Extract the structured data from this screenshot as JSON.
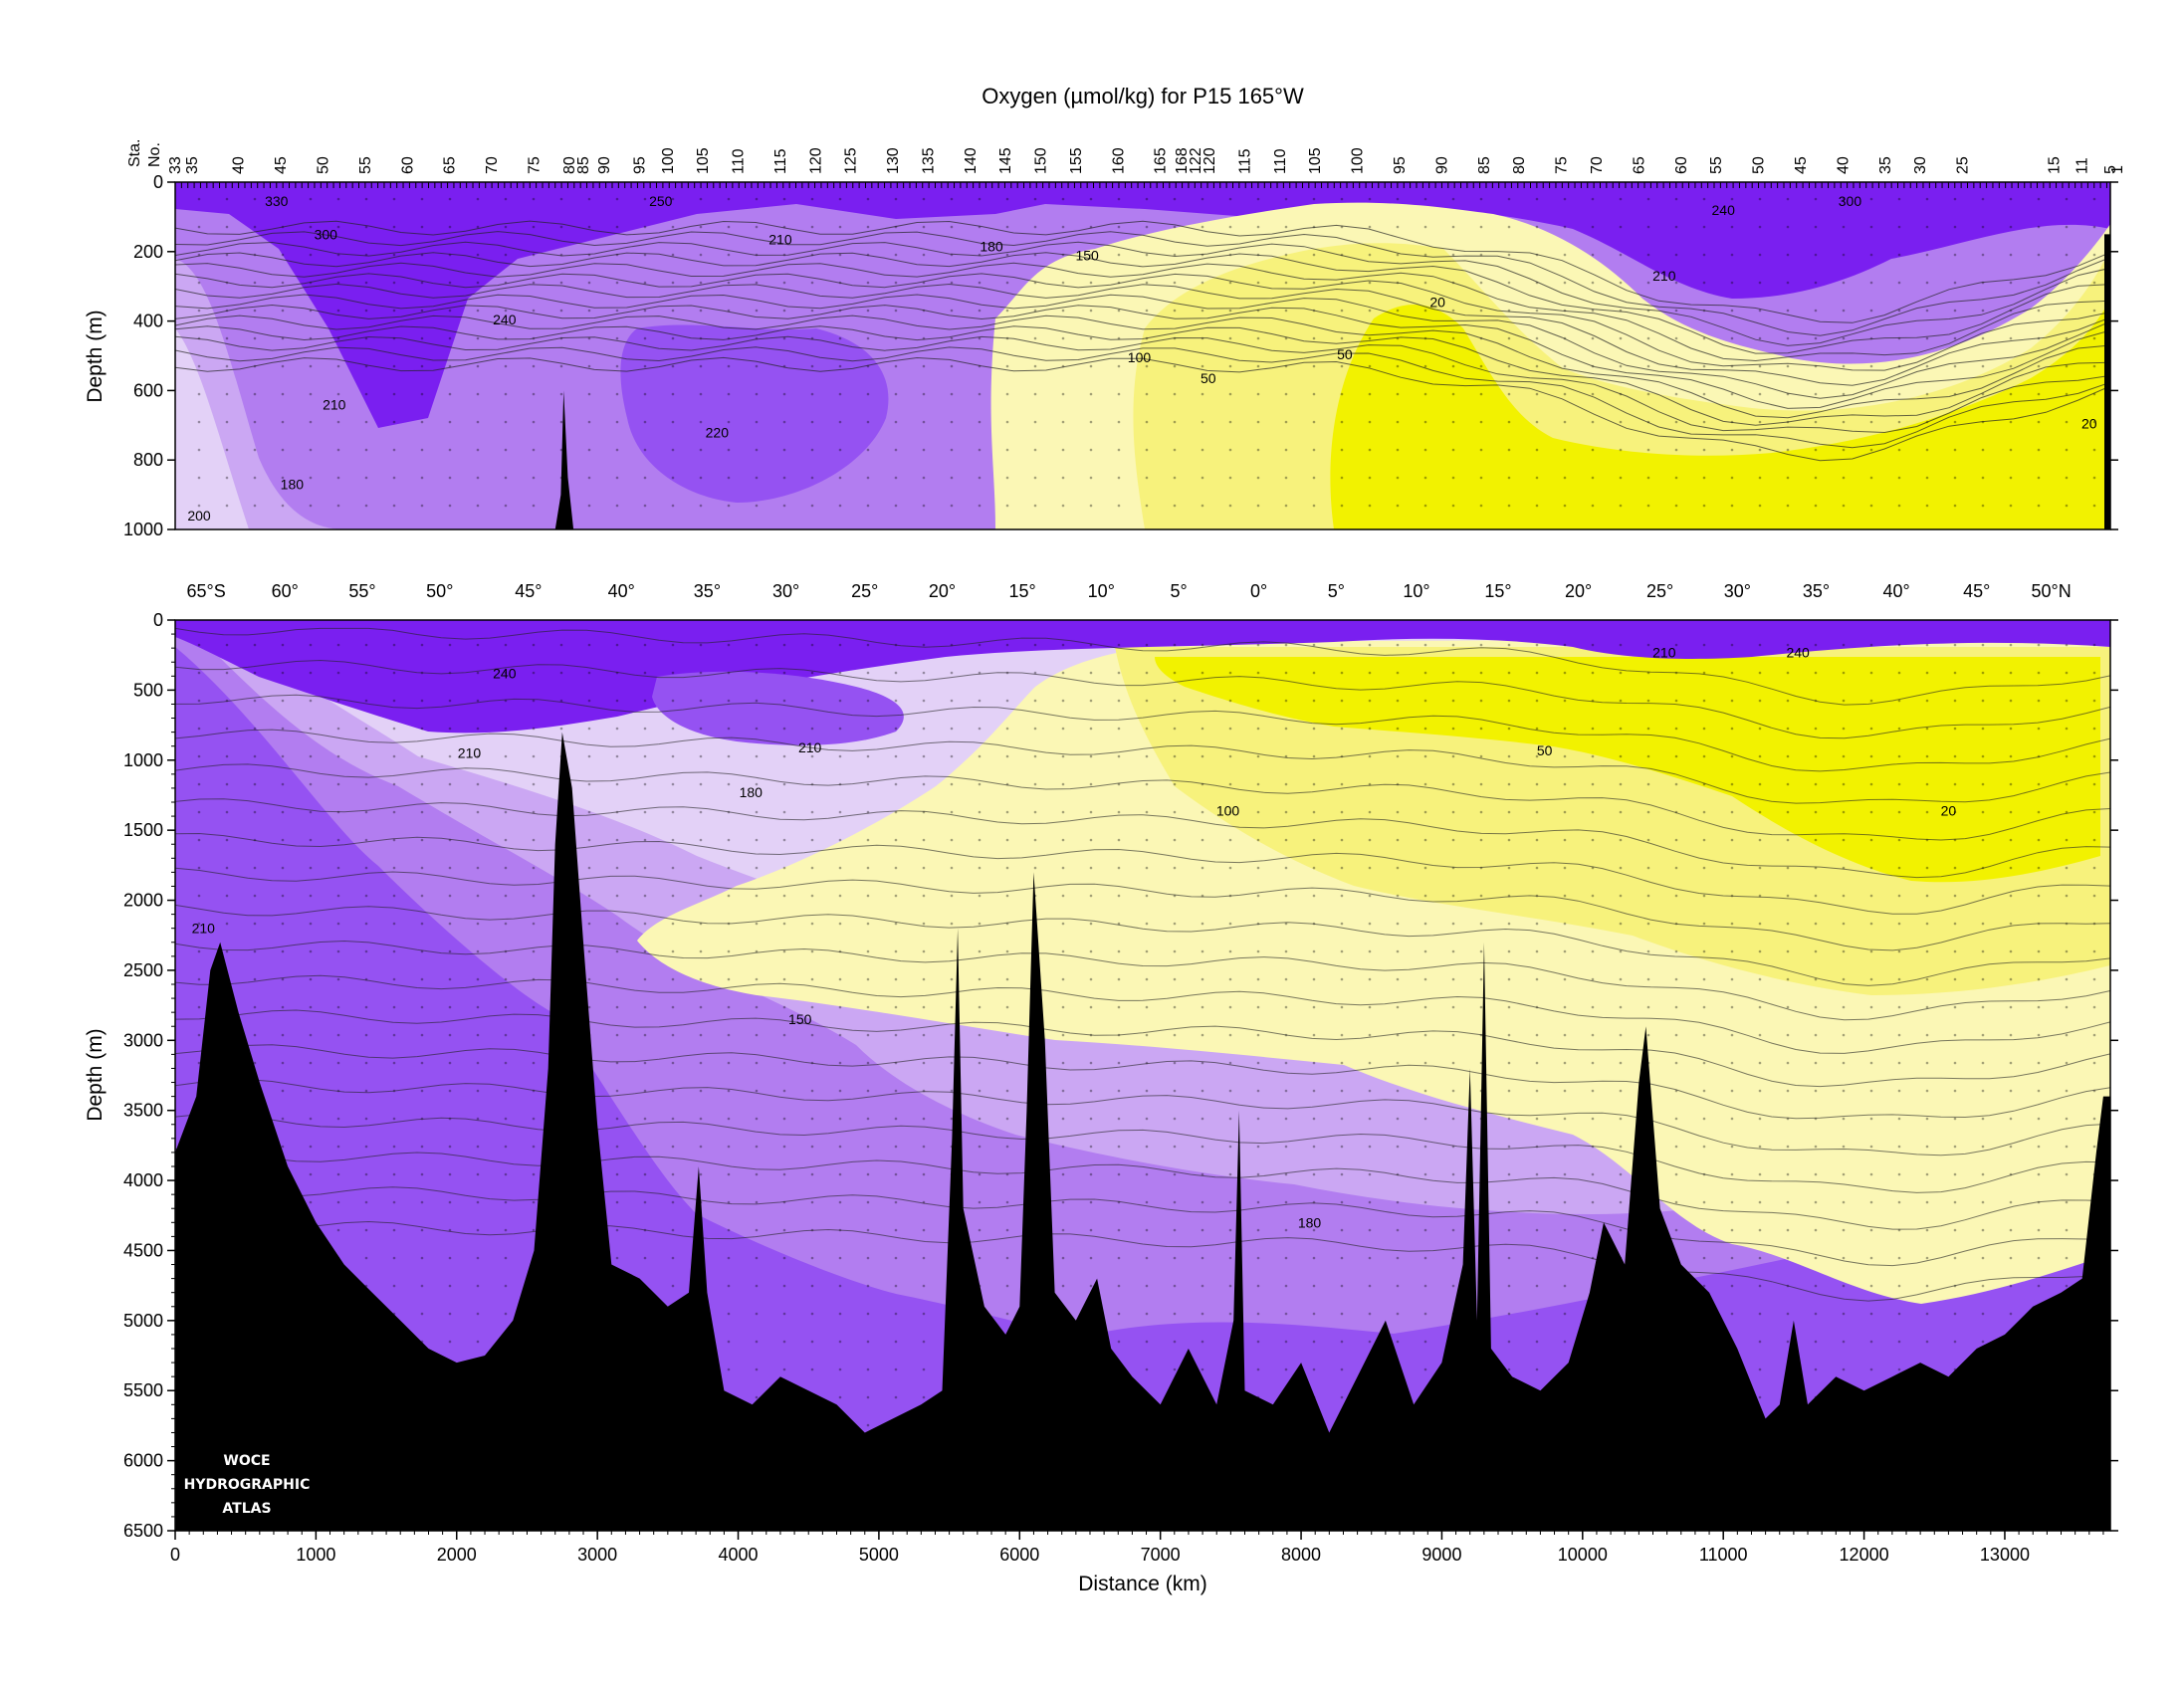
{
  "figure": {
    "title": "Oxygen (µmol/kg) for P15 165°W",
    "logo_lines": [
      "WOCE",
      "HYDROGRAPHIC",
      "ATLAS"
    ],
    "station_axis_label_lines": [
      "Sta.",
      "No."
    ],
    "colors": {
      "very_high": "#7a1ff0",
      "high": "#9552f2",
      "mid_high": "#b27df0",
      "mid": "#cba7f3",
      "mid_low": "#e3d1f7",
      "low_pale": "#fbf7b5",
      "low": "#f7f27c",
      "very_low": "#f2f200",
      "bathymetry": "#000000",
      "contour": "#222222"
    }
  },
  "chart_data": [
    {
      "type": "heatmap",
      "panel": "upper",
      "title": "Oxygen (µmol/kg) for P15 165°W",
      "xlabel": "",
      "ylabel": "Depth (m)",
      "xlim": [
        0,
        13750
      ],
      "ylim": [
        1000,
        0
      ],
      "y_ticks": [
        0,
        200,
        400,
        600,
        800,
        1000
      ],
      "top_axis": "station numbers",
      "station_labels": [
        "33",
        "35",
        "40",
        "45",
        "50",
        "55",
        "60",
        "65",
        "70",
        "75",
        "80",
        "85",
        "90",
        "95",
        "100",
        "105",
        "110",
        "115",
        "120",
        "125",
        "130",
        "135",
        "140",
        "145",
        "150",
        "155",
        "160",
        "165",
        "168",
        "122",
        "120",
        "115",
        "110",
        "105",
        "100",
        "95",
        "90",
        "85",
        "80",
        "75",
        "70",
        "65",
        "60",
        "55",
        "50",
        "45",
        "40",
        "35",
        "30",
        "25",
        "15",
        "11",
        "5",
        "1"
      ],
      "station_distances_km": [
        0,
        120,
        450,
        750,
        1050,
        1350,
        1650,
        1950,
        2250,
        2550,
        2800,
        2900,
        3050,
        3300,
        3500,
        3750,
        4000,
        4300,
        4550,
        4800,
        5100,
        5350,
        5650,
        5900,
        6150,
        6400,
        6700,
        7000,
        7150,
        7250,
        7350,
        7600,
        7850,
        8100,
        8400,
        8700,
        9000,
        9300,
        9550,
        9850,
        10100,
        10400,
        10700,
        10950,
        11250,
        11550,
        11850,
        12150,
        12400,
        12700,
        13350,
        13550,
        13750,
        13800
      ],
      "contour_labels": [
        {
          "value": "330",
          "x_km": 720,
          "depth_m": 55
        },
        {
          "value": "300",
          "x_km": 1070,
          "depth_m": 150
        },
        {
          "value": "250",
          "x_km": 3450,
          "depth_m": 55
        },
        {
          "value": "210",
          "x_km": 4300,
          "depth_m": 165
        },
        {
          "value": "180",
          "x_km": 5800,
          "depth_m": 185
        },
        {
          "value": "150",
          "x_km": 6480,
          "depth_m": 210
        },
        {
          "value": "240",
          "x_km": 2340,
          "depth_m": 395
        },
        {
          "value": "210",
          "x_km": 1130,
          "depth_m": 640
        },
        {
          "value": "220",
          "x_km": 3850,
          "depth_m": 720
        },
        {
          "value": "180",
          "x_km": 830,
          "depth_m": 870
        },
        {
          "value": "200",
          "x_km": 170,
          "depth_m": 960
        },
        {
          "value": "100",
          "x_km": 6850,
          "depth_m": 505
        },
        {
          "value": "50",
          "x_km": 7340,
          "depth_m": 565
        },
        {
          "value": "50",
          "x_km": 8310,
          "depth_m": 495
        },
        {
          "value": "20",
          "x_km": 8970,
          "depth_m": 345
        },
        {
          "value": "240",
          "x_km": 11000,
          "depth_m": 80
        },
        {
          "value": "300",
          "x_km": 11900,
          "depth_m": 55
        },
        {
          "value": "210",
          "x_km": 10580,
          "depth_m": 270
        },
        {
          "value": "20",
          "x_km": 13600,
          "depth_m": 695
        }
      ]
    },
    {
      "type": "heatmap",
      "panel": "lower",
      "xlabel": "Distance (km)",
      "ylabel": "Depth (m)",
      "xlim": [
        0,
        13750
      ],
      "ylim": [
        6500,
        0
      ],
      "x_ticks": [
        0,
        1000,
        2000,
        3000,
        4000,
        5000,
        6000,
        7000,
        8000,
        9000,
        10000,
        11000,
        12000,
        13000
      ],
      "y_ticks": [
        0,
        500,
        1000,
        1500,
        2000,
        2500,
        3000,
        3500,
        4000,
        4500,
        5000,
        5500,
        6000,
        6500
      ],
      "latitude_labels": [
        "65°S",
        "60°",
        "55°",
        "50°",
        "45°",
        "40°",
        "35°",
        "30°",
        "25°",
        "20°",
        "15°",
        "10°",
        "5°",
        "0°",
        "5°",
        "10°",
        "15°",
        "20°",
        "25°",
        "30°",
        "35°",
        "40°",
        "45°",
        "50°N"
      ],
      "latitude_positions_km": [
        220,
        780,
        1330,
        1880,
        2510,
        3170,
        3780,
        4340,
        4900,
        5450,
        6020,
        6580,
        7130,
        7700,
        8250,
        8820,
        9400,
        9970,
        10550,
        11100,
        11660,
        12230,
        12800,
        13330
      ],
      "contour_labels": [
        {
          "value": "240",
          "x_km": 2340,
          "depth_m": 380
        },
        {
          "value": "210",
          "x_km": 2090,
          "depth_m": 950
        },
        {
          "value": "180",
          "x_km": 4090,
          "depth_m": 1230
        },
        {
          "value": "210",
          "x_km": 4510,
          "depth_m": 910
        },
        {
          "value": "210",
          "x_km": 200,
          "depth_m": 2200
        },
        {
          "value": "150",
          "x_km": 4440,
          "depth_m": 2850
        },
        {
          "value": "180",
          "x_km": 8060,
          "depth_m": 4300
        },
        {
          "value": "100",
          "x_km": 7480,
          "depth_m": 1360
        },
        {
          "value": "50",
          "x_km": 9730,
          "depth_m": 930
        },
        {
          "value": "20",
          "x_km": 12600,
          "depth_m": 1360
        },
        {
          "value": "210",
          "x_km": 10580,
          "depth_m": 230
        },
        {
          "value": "240",
          "x_km": 11530,
          "depth_m": 230
        }
      ],
      "bathymetry_depth_m": [
        [
          0,
          3800
        ],
        [
          150,
          3400
        ],
        [
          250,
          2500
        ],
        [
          320,
          2300
        ],
        [
          450,
          2800
        ],
        [
          600,
          3300
        ],
        [
          800,
          3900
        ],
        [
          1000,
          4300
        ],
        [
          1200,
          4600
        ],
        [
          1400,
          4800
        ],
        [
          1600,
          5000
        ],
        [
          1800,
          5200
        ],
        [
          2000,
          5300
        ],
        [
          2200,
          5250
        ],
        [
          2400,
          5000
        ],
        [
          2550,
          4500
        ],
        [
          2650,
          3200
        ],
        [
          2700,
          1600
        ],
        [
          2750,
          800
        ],
        [
          2820,
          1200
        ],
        [
          2900,
          2300
        ],
        [
          3000,
          3600
        ],
        [
          3100,
          4600
        ],
        [
          3300,
          4700
        ],
        [
          3500,
          4900
        ],
        [
          3650,
          4800
        ],
        [
          3720,
          3900
        ],
        [
          3780,
          4800
        ],
        [
          3900,
          5500
        ],
        [
          4100,
          5600
        ],
        [
          4300,
          5400
        ],
        [
          4500,
          5500
        ],
        [
          4700,
          5600
        ],
        [
          4900,
          5800
        ],
        [
          5100,
          5700
        ],
        [
          5300,
          5600
        ],
        [
          5450,
          5500
        ],
        [
          5520,
          3700
        ],
        [
          5560,
          2200
        ],
        [
          5600,
          4200
        ],
        [
          5750,
          4900
        ],
        [
          5900,
          5100
        ],
        [
          6000,
          4900
        ],
        [
          6050,
          3500
        ],
        [
          6100,
          1800
        ],
        [
          6180,
          3000
        ],
        [
          6250,
          4800
        ],
        [
          6400,
          5000
        ],
        [
          6550,
          4700
        ],
        [
          6650,
          5200
        ],
        [
          6800,
          5400
        ],
        [
          7000,
          5600
        ],
        [
          7200,
          5200
        ],
        [
          7400,
          5600
        ],
        [
          7520,
          5000
        ],
        [
          7560,
          3500
        ],
        [
          7600,
          5500
        ],
        [
          7800,
          5600
        ],
        [
          8000,
          5300
        ],
        [
          8200,
          5800
        ],
        [
          8400,
          5400
        ],
        [
          8600,
          5000
        ],
        [
          8800,
          5600
        ],
        [
          9000,
          5300
        ],
        [
          9150,
          4600
        ],
        [
          9200,
          3200
        ],
        [
          9250,
          5000
        ],
        [
          9300,
          2300
        ],
        [
          9350,
          5200
        ],
        [
          9500,
          5400
        ],
        [
          9700,
          5500
        ],
        [
          9900,
          5300
        ],
        [
          10050,
          4800
        ],
        [
          10150,
          4300
        ],
        [
          10300,
          4600
        ],
        [
          10400,
          3300
        ],
        [
          10450,
          2900
        ],
        [
          10550,
          4200
        ],
        [
          10700,
          4600
        ],
        [
          10900,
          4800
        ],
        [
          11100,
          5200
        ],
        [
          11300,
          5700
        ],
        [
          11400,
          5600
        ],
        [
          11500,
          5000
        ],
        [
          11600,
          5600
        ],
        [
          11800,
          5400
        ],
        [
          12000,
          5500
        ],
        [
          12200,
          5400
        ],
        [
          12400,
          5300
        ],
        [
          12600,
          5400
        ],
        [
          12800,
          5200
        ],
        [
          13000,
          5100
        ],
        [
          13200,
          4900
        ],
        [
          13400,
          4800
        ],
        [
          13550,
          4700
        ],
        [
          13650,
          3800
        ],
        [
          13700,
          3400
        ],
        [
          13750,
          3400
        ]
      ]
    }
  ]
}
